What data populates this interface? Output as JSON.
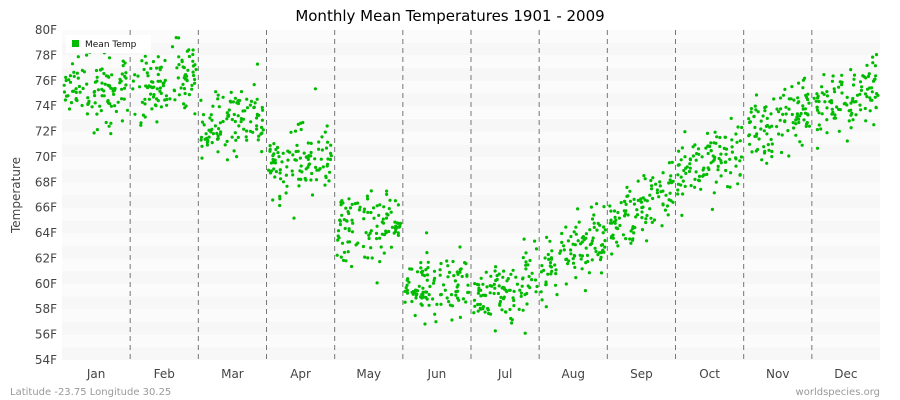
{
  "chart_data": {
    "type": "scatter",
    "title": "Monthly Mean Temperatures 1901 - 2009",
    "ylabel": "Temperature",
    "xlabel": "",
    "ylim": [
      54,
      80
    ],
    "y_ticks": [
      "54F",
      "56F",
      "58F",
      "60F",
      "62F",
      "64F",
      "66F",
      "68F",
      "70F",
      "72F",
      "74F",
      "76F",
      "78F",
      "80F"
    ],
    "categories": [
      "Jan",
      "Feb",
      "Mar",
      "Apr",
      "May",
      "Jun",
      "Jul",
      "Aug",
      "Sep",
      "Oct",
      "Nov",
      "Dec"
    ],
    "series": [
      {
        "name": "Mean Temp",
        "color": "#00bb00",
        "monthly_start": [
          75.2,
          75.3,
          72.2,
          69.2,
          64.2,
          59.6,
          58.9,
          60.8,
          64.4,
          68.6,
          72.0,
          73.8
        ],
        "monthly_end": [
          75.3,
          76.2,
          73.4,
          70.6,
          64.8,
          59.6,
          60.2,
          63.4,
          67.6,
          70.6,
          73.6,
          75.2
        ],
        "spread": 1.35,
        "points_per_month": 109
      }
    ],
    "legend": {
      "position": "top-left"
    },
    "grid": {
      "horizontal_bands": true,
      "vertical_dashed_month_dividers": true
    }
  },
  "footer": {
    "left": "Latitude -23.75 Longitude 30.25",
    "right": "worldspecies.org"
  }
}
